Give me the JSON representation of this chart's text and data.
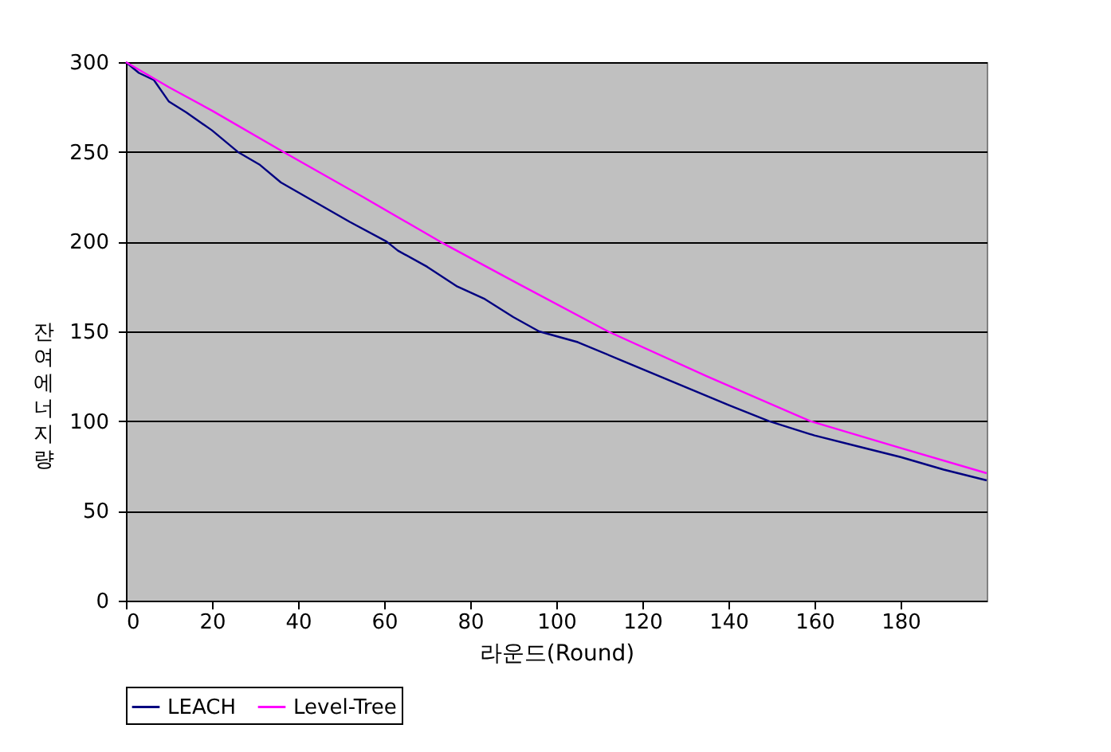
{
  "chart_data": {
    "type": "line",
    "xlabel": "라운드(Round)",
    "ylabel": "잔여 에너지량",
    "xlim": [
      0,
      200
    ],
    "xticks": [
      0,
      20,
      40,
      60,
      80,
      100,
      120,
      140,
      160,
      180
    ],
    "ylim": [
      0,
      300
    ],
    "yticks": [
      0,
      50,
      100,
      150,
      200,
      250,
      300
    ],
    "grid": "y",
    "legend": "bottom",
    "line_style": "solid",
    "marker": "none",
    "series": [
      {
        "name": "LEACH",
        "color": "#000080",
        "x": [
          0,
          3,
          6.5,
          10,
          14,
          20,
          26,
          31,
          36,
          44,
          52,
          60.6,
          63.2,
          70,
          77,
          83.4,
          90,
          96,
          105,
          115,
          125,
          131,
          140,
          149.4,
          160,
          170,
          180,
          190,
          200
        ],
        "values": [
          300,
          294,
          290,
          278,
          272,
          262,
          250,
          243,
          233,
          222,
          211,
          200,
          195,
          186,
          175,
          168,
          158,
          150,
          144,
          134,
          124,
          118,
          109,
          100,
          92,
          86,
          80,
          73,
          67
        ]
      },
      {
        "name": "Level-Tree",
        "color": "#ff00ff",
        "x": [
          0,
          10,
          20,
          36.6,
          55,
          73,
          90,
          112,
          135,
          159,
          180,
          200
        ],
        "values": [
          300,
          286,
          273,
          250,
          225,
          200,
          178,
          150,
          125,
          100,
          85,
          71
        ]
      }
    ]
  }
}
